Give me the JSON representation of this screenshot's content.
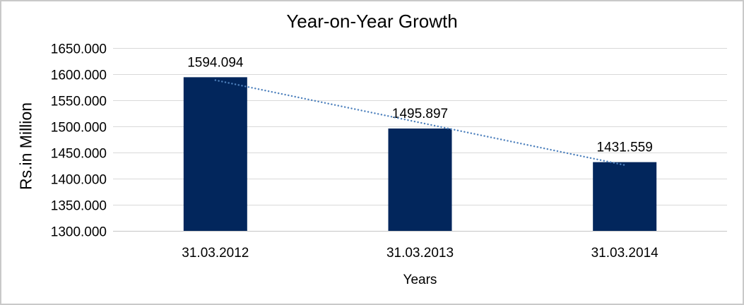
{
  "chart_data": {
    "type": "bar",
    "title": "Year-on-Year Growth",
    "categories": [
      "31.03.2012",
      "31.03.2013",
      "31.03.2014"
    ],
    "values": [
      1594.094,
      1495.897,
      1431.559
    ],
    "data_labels": [
      "1594.094",
      "1495.897",
      "1431.559"
    ],
    "xlabel": "Years",
    "ylabel": "Rs.in Million",
    "ylim": [
      1300,
      1650
    ],
    "ytick_step": 50,
    "ytick_labels": [
      "1650.000",
      "1600.000",
      "1550.000",
      "1500.000",
      "1450.000",
      "1400.000",
      "1350.000",
      "1300.000"
    ],
    "grid": true,
    "legend": "none",
    "trendline": {
      "style": "dotted",
      "fit": "linear",
      "color": "#4e81bd"
    },
    "colors": {
      "bar": "#02265c",
      "gridline": "#d9d9d9",
      "baseline": "#c6c6c6",
      "text": "#000000",
      "frame_border": "#c9c9c9",
      "background": "#ffffff"
    }
  }
}
